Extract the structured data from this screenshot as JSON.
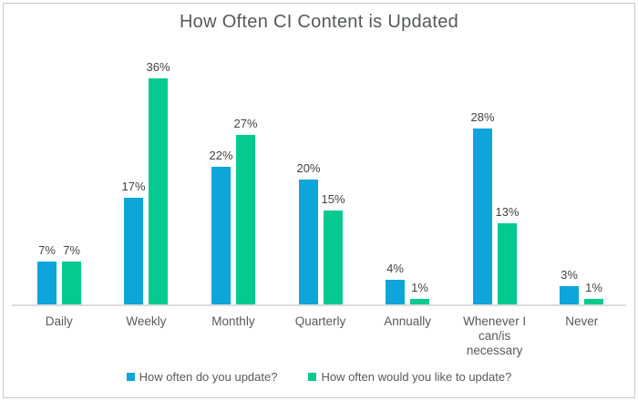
{
  "chart_data": {
    "type": "bar",
    "title": "How Often CI Content is Updated",
    "categories": [
      "Daily",
      "Weekly",
      "Monthly",
      "Quarterly",
      "Annually",
      "Whenever I can/is necessary",
      "Never"
    ],
    "series": [
      {
        "name": "How often do you update?",
        "color": "#0ea5da",
        "values": [
          7,
          17,
          22,
          20,
          4,
          28,
          3
        ]
      },
      {
        "name": "How often would you like to update?",
        "color": "#06c98f",
        "values": [
          7,
          36,
          27,
          15,
          1,
          13,
          1
        ]
      }
    ],
    "value_label_format": "{v}%",
    "xlabel": "",
    "ylabel": "",
    "ylim": [
      0,
      40
    ],
    "grid": false,
    "legend_position": "bottom"
  }
}
